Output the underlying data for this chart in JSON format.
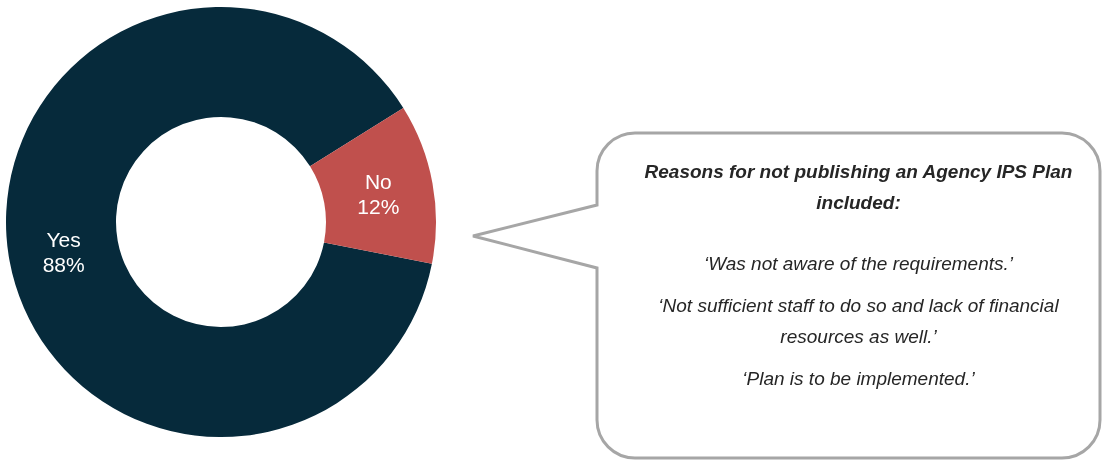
{
  "chart_data": {
    "type": "donut",
    "title": "Reasons for not publishing an Agency IPS Plan included:",
    "categories": [
      "Yes",
      "No"
    ],
    "values": [
      88,
      12
    ],
    "colors": [
      "#062a3b",
      "#c0504d"
    ],
    "value_labels": [
      "88%",
      "12%"
    ],
    "annotations": [
      "‘Was not aware of the requirements.’",
      "‘Not sufficient staff to do so and lack of financial resources as well.’",
      "‘Plan is to be implemented.’"
    ]
  }
}
